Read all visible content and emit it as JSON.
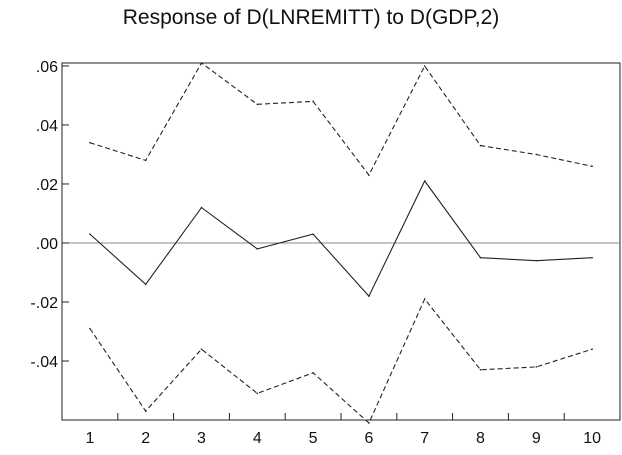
{
  "chart_data": {
    "type": "line",
    "title": "Response of D(LNREMITT) to D(GDP,2)",
    "xlabel": "",
    "ylabel": "",
    "x": [
      1,
      2,
      3,
      4,
      5,
      6,
      7,
      8,
      9,
      10
    ],
    "x_tick_labels": [
      "1",
      "2",
      "3",
      "4",
      "5",
      "6",
      "7",
      "8",
      "9",
      "10"
    ],
    "y_tick_values": [
      0.06,
      0.04,
      0.02,
      0.0,
      -0.02,
      -0.04
    ],
    "y_tick_labels": [
      ".06",
      ".04",
      ".02",
      ".00",
      "-.02",
      "-.04"
    ],
    "ylim": [
      -0.06,
      0.061
    ],
    "grid": false,
    "zero_line": true,
    "series": [
      {
        "values": [
          0.034,
          0.028,
          0.061,
          0.047,
          0.048,
          0.023,
          0.06,
          0.033,
          0.03,
          0.026
        ],
        "style": "dashed",
        "color": "#222222"
      },
      {
        "values": [
          0.003,
          -0.014,
          0.012,
          -0.002,
          0.003,
          -0.018,
          0.021,
          -0.005,
          -0.006,
          -0.005
        ],
        "style": "solid",
        "color": "#222222"
      },
      {
        "values": [
          -0.029,
          -0.057,
          -0.036,
          -0.051,
          -0.044,
          -0.061,
          -0.019,
          -0.043,
          -0.042,
          -0.036
        ],
        "style": "dashed",
        "color": "#222222"
      }
    ]
  }
}
